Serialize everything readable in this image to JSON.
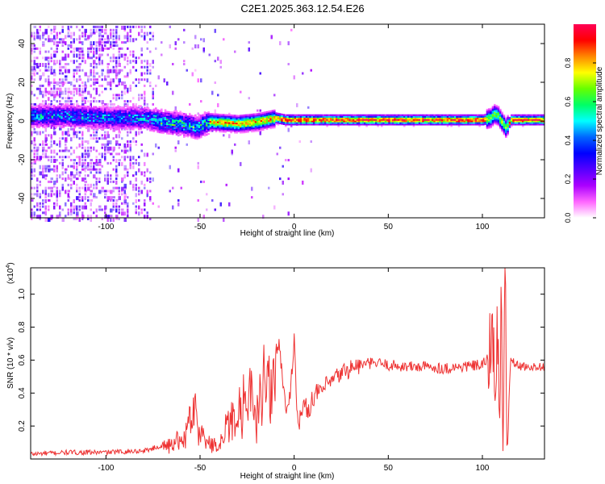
{
  "title": "C2E1.2025.363.12.54.E26",
  "chart_data": [
    {
      "type": "heatmap",
      "xlabel": "Height of straight line (km)",
      "ylabel": "Frequency (Hz)",
      "xlim": [
        -140,
        133
      ],
      "ylim": [
        -50,
        50
      ],
      "x_ticks": [
        -100,
        -50,
        0,
        50,
        100
      ],
      "y_ticks": [
        -40,
        -20,
        0,
        20,
        40
      ],
      "colorbar": {
        "label": "Normalized spectral amplitude",
        "range": [
          0,
          1
        ],
        "ticks": [
          0.0,
          0.2,
          0.4,
          0.6,
          0.8
        ],
        "colors": [
          "#ffffff",
          "#ff66ff",
          "#aa00ff",
          "#5500ff",
          "#0000ff",
          "#0066ff",
          "#00ffff",
          "#00ff66",
          "#66ff00",
          "#ffff00",
          "#ff8800",
          "#ff0000",
          "#ff0055"
        ]
      },
      "ridge": {
        "center_frequency_hz": [
          [
            -140,
            3
          ],
          [
            -120,
            3
          ],
          [
            -100,
            2
          ],
          [
            -80,
            2
          ],
          [
            -70,
            0
          ],
          [
            -60,
            -1
          ],
          [
            -52,
            -3
          ],
          [
            -45,
            0
          ],
          [
            -30,
            -1
          ],
          [
            -20,
            0
          ],
          [
            -10,
            2
          ],
          [
            -5,
            1
          ],
          [
            0,
            1
          ],
          [
            20,
            1
          ],
          [
            50,
            1
          ],
          [
            100,
            1
          ],
          [
            104,
            2
          ],
          [
            106,
            4
          ],
          [
            108,
            3
          ],
          [
            110,
            0
          ],
          [
            112,
            -3
          ],
          [
            115,
            1
          ],
          [
            133,
            1
          ]
        ]
      }
    },
    {
      "type": "line",
      "xlabel": "Height of straight line (km)",
      "ylabel": "SNR (10 * v/v)",
      "y_multiplier_label": "(x10",
      "y_multiplier_exp": "4",
      "xlim": [
        -140,
        133
      ],
      "ylim": [
        0,
        1.16
      ],
      "x_ticks": [
        -100,
        -50,
        0,
        50,
        100
      ],
      "y_ticks": [
        0.2,
        0.4,
        0.6,
        0.8,
        1.0
      ],
      "color": "#ee3333",
      "series": [
        {
          "x": [
            -140,
            -120,
            -100,
            -80,
            -70,
            -62,
            -56,
            -54,
            -52,
            -50,
            -45,
            -40,
            -38,
            -35,
            -32,
            -30,
            -27,
            -25,
            -22,
            -20,
            -18,
            -15,
            -12,
            -10,
            -8,
            -5,
            -3,
            0,
            2,
            5,
            8,
            10,
            15,
            20,
            25,
            30,
            35,
            40,
            45,
            50,
            60,
            70,
            80,
            90,
            100,
            104,
            106,
            107,
            108,
            109,
            110,
            111,
            112,
            113,
            115,
            120,
            133
          ],
          "y": [
            0.03,
            0.04,
            0.04,
            0.05,
            0.08,
            0.12,
            0.2,
            0.34,
            0.26,
            0.18,
            0.1,
            0.08,
            0.18,
            0.22,
            0.28,
            0.3,
            0.4,
            0.52,
            0.35,
            0.25,
            0.38,
            0.55,
            0.42,
            0.62,
            0.72,
            0.35,
            0.28,
            0.73,
            0.2,
            0.32,
            0.3,
            0.38,
            0.42,
            0.47,
            0.52,
            0.55,
            0.57,
            0.58,
            0.58,
            0.57,
            0.56,
            0.56,
            0.55,
            0.56,
            0.57,
            0.62,
            1.02,
            0.2,
            0.95,
            0.08,
            1.05,
            0.02,
            1.15,
            0.05,
            0.6,
            0.56,
            0.56
          ]
        }
      ]
    }
  ]
}
